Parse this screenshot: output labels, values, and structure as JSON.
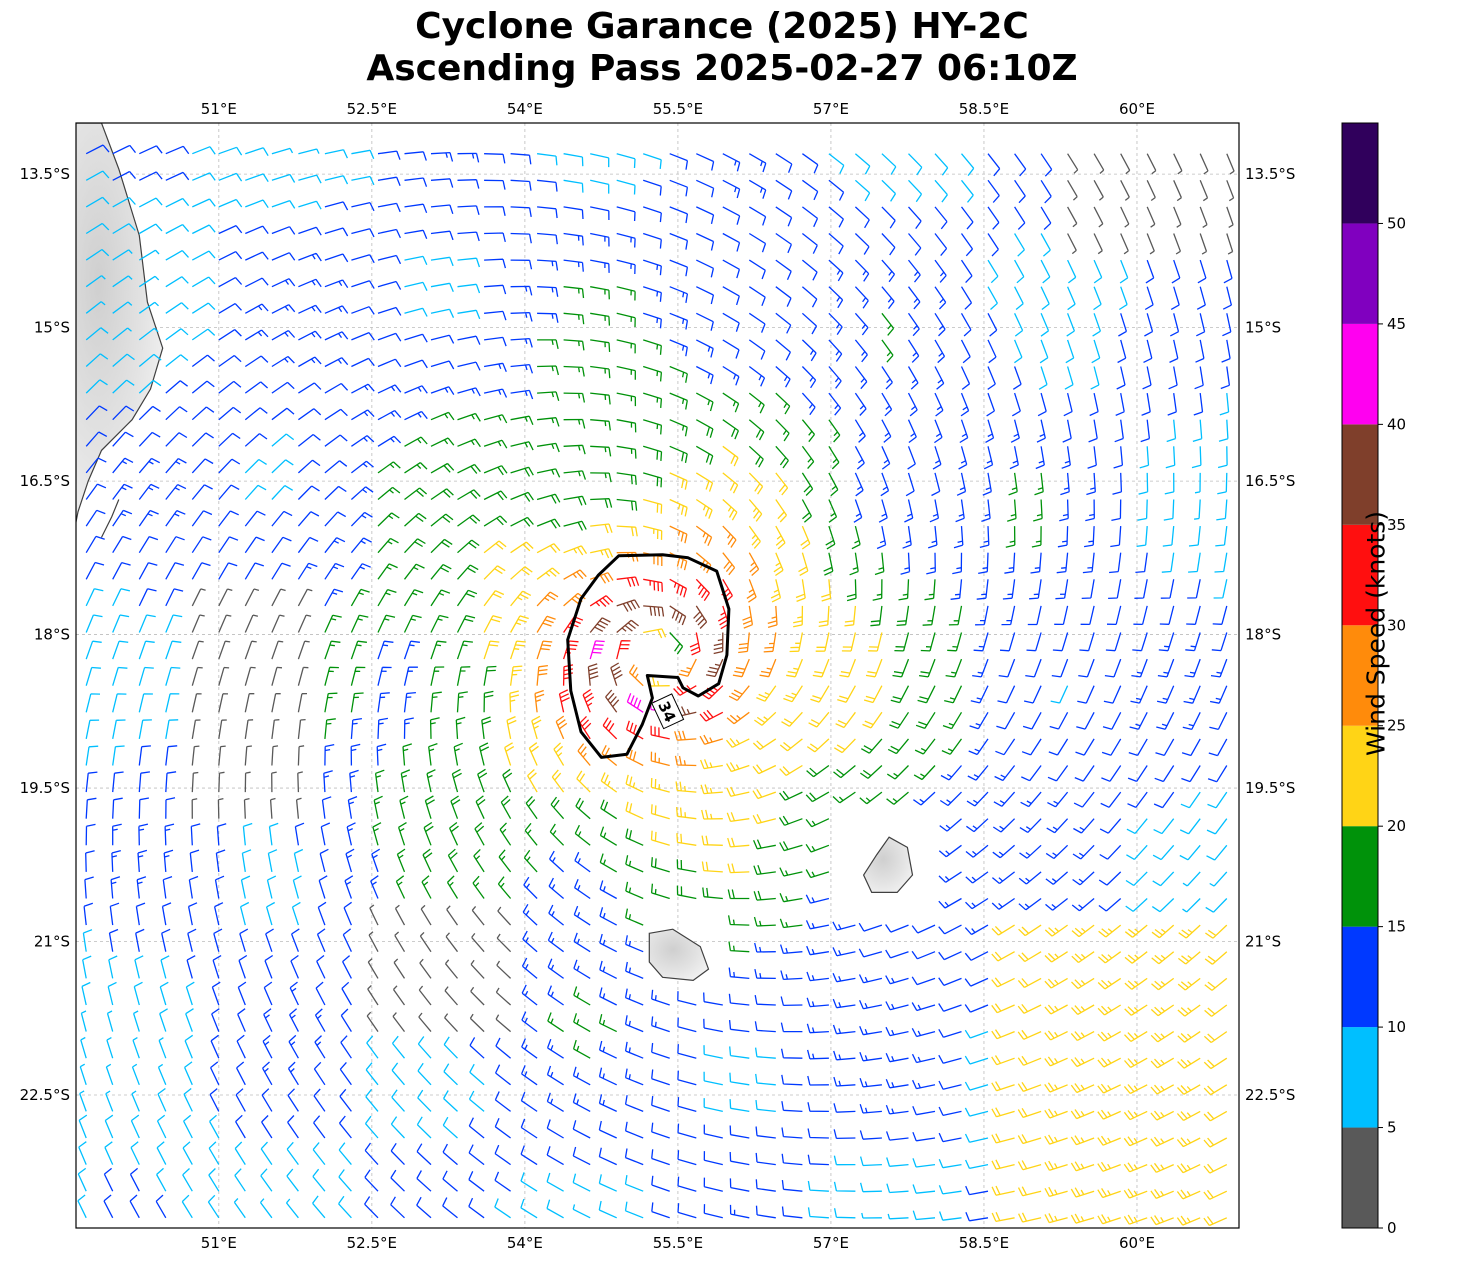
{
  "title": {
    "line1": "Cyclone Garance (2025) HY-2C",
    "line2": "Ascending Pass 2025-02-27 06:10Z"
  },
  "map": {
    "lon_range": [
      49.6,
      61.0
    ],
    "lat_range": [
      -23.8,
      -13.0
    ],
    "lon_ticks": [
      {
        "value": 51.0,
        "label": "51°E"
      },
      {
        "value": 52.5,
        "label": "52.5°E"
      },
      {
        "value": 54.0,
        "label": "54°E"
      },
      {
        "value": 55.5,
        "label": "55.5°E"
      },
      {
        "value": 57.0,
        "label": "57°E"
      },
      {
        "value": 58.5,
        "label": "58.5°E"
      },
      {
        "value": 60.0,
        "label": "60°E"
      }
    ],
    "lat_ticks": [
      {
        "value": -13.5,
        "label": "13.5°S"
      },
      {
        "value": -15.0,
        "label": "15°S"
      },
      {
        "value": -16.5,
        "label": "16.5°S"
      },
      {
        "value": -18.0,
        "label": "18°S"
      },
      {
        "value": -19.5,
        "label": "19.5°S"
      },
      {
        "value": -21.0,
        "label": "21°S"
      },
      {
        "value": -22.5,
        "label": "22.5°S"
      }
    ],
    "gridlines": true,
    "storm_center": {
      "lon": 55.3,
      "lat": -18.2
    },
    "contour_34kt": {
      "label": "34",
      "points": [
        [
          54.92,
          -17.23
        ],
        [
          55.35,
          -17.22
        ],
        [
          55.6,
          -17.25
        ],
        [
          55.88,
          -17.38
        ],
        [
          56.0,
          -17.75
        ],
        [
          55.98,
          -18.2
        ],
        [
          55.9,
          -18.48
        ],
        [
          55.7,
          -18.6
        ],
        [
          55.55,
          -18.52
        ],
        [
          55.5,
          -18.42
        ],
        [
          55.2,
          -18.4
        ],
        [
          55.25,
          -18.62
        ],
        [
          55.15,
          -18.88
        ],
        [
          55.0,
          -19.17
        ],
        [
          54.75,
          -19.2
        ],
        [
          54.55,
          -18.95
        ],
        [
          54.45,
          -18.55
        ],
        [
          54.42,
          -18.05
        ],
        [
          54.55,
          -17.65
        ],
        [
          54.72,
          -17.42
        ]
      ]
    },
    "islands": [
      {
        "name": "Réunion",
        "points": [
          [
            55.22,
            -20.92
          ],
          [
            55.45,
            -20.88
          ],
          [
            55.72,
            -21.05
          ],
          [
            55.8,
            -21.27
          ],
          [
            55.65,
            -21.38
          ],
          [
            55.35,
            -21.35
          ],
          [
            55.22,
            -21.2
          ]
        ]
      },
      {
        "name": "Mauritius",
        "points": [
          [
            57.57,
            -19.98
          ],
          [
            57.75,
            -20.08
          ],
          [
            57.8,
            -20.35
          ],
          [
            57.65,
            -20.52
          ],
          [
            57.4,
            -20.52
          ],
          [
            57.32,
            -20.35
          ],
          [
            57.45,
            -20.15
          ]
        ]
      },
      {
        "name": "Madagascar",
        "points": [
          [
            49.6,
            -13.0
          ],
          [
            49.85,
            -13.0
          ],
          [
            50.02,
            -13.45
          ],
          [
            50.22,
            -14.1
          ],
          [
            50.3,
            -14.75
          ],
          [
            50.45,
            -15.2
          ],
          [
            50.33,
            -15.6
          ],
          [
            50.15,
            -15.9
          ],
          [
            49.85,
            -16.2
          ],
          [
            49.72,
            -16.5
          ],
          [
            49.62,
            -16.8
          ],
          [
            49.6,
            -16.9
          ]
        ]
      },
      {
        "name": "Sainte-Marie",
        "points": [
          [
            50.02,
            -16.68
          ],
          [
            49.95,
            -16.85
          ],
          [
            49.85,
            -17.05
          ]
        ]
      }
    ],
    "wind_field": {
      "units": "knots",
      "center_lon": 55.3,
      "center_lat": -18.2,
      "peak_speed": 42,
      "radius_max_wind_deg": 0.55
    }
  },
  "colorbar": {
    "label": "Wind Speed (knots)",
    "range": [
      0,
      55
    ],
    "bins": [
      {
        "from": 0,
        "to": 5,
        "color": "#595959"
      },
      {
        "from": 5,
        "to": 10,
        "color": "#00bfff"
      },
      {
        "from": 10,
        "to": 15,
        "color": "#0039ff"
      },
      {
        "from": 15,
        "to": 20,
        "color": "#00920a"
      },
      {
        "from": 20,
        "to": 25,
        "color": "#ffd416"
      },
      {
        "from": 25,
        "to": 30,
        "color": "#ff8b0b"
      },
      {
        "from": 30,
        "to": 35,
        "color": "#ff0f0f"
      },
      {
        "from": 35,
        "to": 40,
        "color": "#7f3f2b"
      },
      {
        "from": 40,
        "to": 45,
        "color": "#ff00f0"
      },
      {
        "from": 45,
        "to": 50,
        "color": "#8000bf"
      },
      {
        "from": 50,
        "to": 55,
        "color": "#30005c"
      }
    ],
    "ticks": [
      {
        "value": 0,
        "label": "0"
      },
      {
        "value": 5,
        "label": "5"
      },
      {
        "value": 10,
        "label": "10"
      },
      {
        "value": 15,
        "label": "15"
      },
      {
        "value": 20,
        "label": "20"
      },
      {
        "value": 25,
        "label": "25"
      },
      {
        "value": 30,
        "label": "30"
      },
      {
        "value": 35,
        "label": "35"
      },
      {
        "value": 40,
        "label": "40"
      },
      {
        "value": 45,
        "label": "45"
      },
      {
        "value": 50,
        "label": "50"
      }
    ]
  }
}
